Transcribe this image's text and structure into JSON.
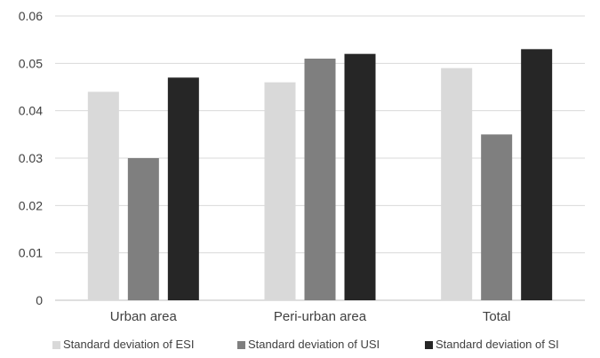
{
  "chart_data": {
    "type": "bar",
    "categories": [
      "Urban area",
      "Peri-urban area",
      "Total"
    ],
    "series": [
      {
        "name": "Standard deviation of ESI",
        "color": "#d9d9d9",
        "values": [
          0.044,
          0.046,
          0.049
        ]
      },
      {
        "name": "Standard deviation of USI",
        "color": "#7f7f7f",
        "values": [
          0.03,
          0.051,
          0.035
        ]
      },
      {
        "name": "Standard deviation of SI",
        "color": "#262626",
        "values": [
          0.047,
          0.052,
          0.053
        ]
      }
    ],
    "yticks": [
      "0",
      "0.01",
      "0.02",
      "0.03",
      "0.04",
      "0.05",
      "0.06"
    ],
    "ylim": [
      0,
      0.06
    ],
    "grid": true,
    "legend": "bottom"
  }
}
